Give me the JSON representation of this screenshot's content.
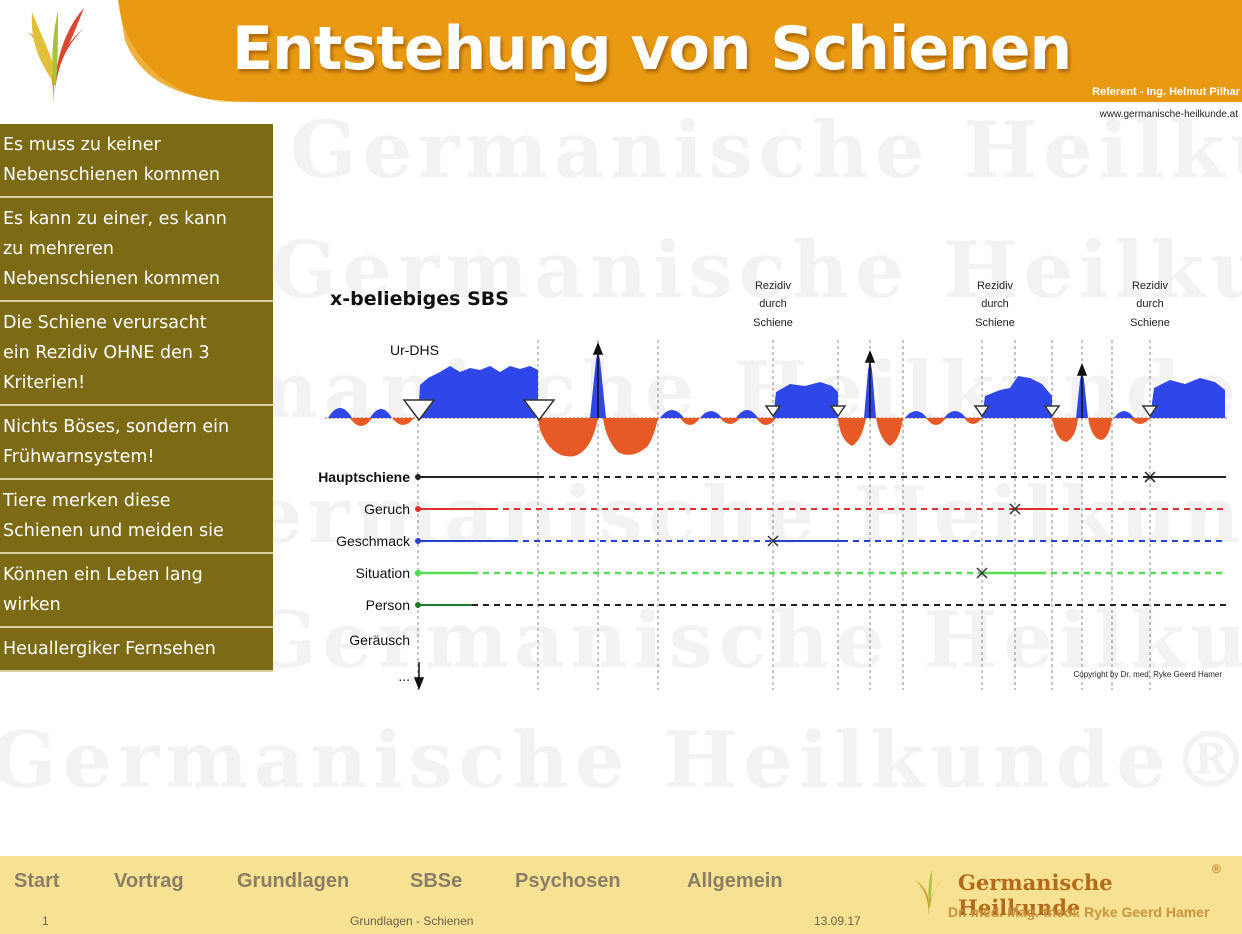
{
  "header": {
    "title": "Entstehung von Schienen",
    "referent": "Referent - Ing. Helmut Pilhar",
    "website": "www.germanische-heilkunde.at"
  },
  "watermark": {
    "text": "Germanische Heilkunde®"
  },
  "sidebar": {
    "items": [
      {
        "lines": [
          "Es muss zu keiner",
          "Nebenschienen kommen"
        ]
      },
      {
        "lines": [
          "Es kann zu einer, es kann",
          "zu mehreren",
          "Nebenschienen kommen"
        ]
      },
      {
        "lines": [
          "Die Schiene verursacht",
          "ein Rezidiv OHNE den 3",
          "Kriterien!"
        ]
      },
      {
        "lines": [
          "Nichts Böses, sondern ein",
          "Frühwarnsystem!"
        ]
      },
      {
        "lines": [
          "Tiere merken diese",
          "Schienen und meiden sie"
        ]
      },
      {
        "lines": [
          "Können ein Leben lang",
          "wirken"
        ]
      },
      {
        "lines": [
          "Heuallergiker Fernsehen"
        ]
      }
    ]
  },
  "diagram": {
    "title": "x-beliebiges SBS",
    "ur_dhs_label": "Ur-DHS",
    "rezidiv_labels": [
      [
        "Rezidiv",
        "durch",
        "Schiene"
      ],
      [
        "Rezidiv",
        "durch",
        "Schiene"
      ],
      [
        "Rezidiv",
        "durch",
        "Schiene"
      ]
    ],
    "rows": [
      {
        "label": "Hauptschiene",
        "color": "#222222"
      },
      {
        "label": "Geruch",
        "color": "#e03030"
      },
      {
        "label": "Geschmack",
        "color": "#2a3fd0"
      },
      {
        "label": "Situation",
        "color": "#55dd55"
      },
      {
        "label": "Person",
        "color": "#1f7a2a"
      },
      {
        "label": "Geräusch",
        "color": "#222222"
      }
    ],
    "more_label": "...",
    "copyright": "Copyright by Dr. med. Ryke Geerd Hamer",
    "colors": {
      "sympathicotonia": "#2f46e8",
      "vagotonia": "#e85a25"
    }
  },
  "footer": {
    "nav": [
      "Start",
      "Vortrag",
      "Grundlagen",
      "SBSe",
      "Psychosen",
      "Allgemein"
    ],
    "page_number": "1",
    "section": "Grundlagen - Schienen",
    "date": "13.09.17",
    "brand": "Germanische Heilkunde",
    "brand_reg": "®",
    "brand_sub": "Dr. med. Mag. theol. Ryke Geerd Hamer"
  }
}
